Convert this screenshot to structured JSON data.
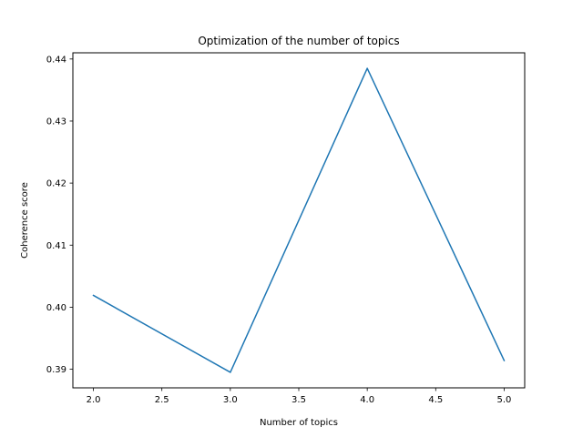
{
  "chart_data": {
    "type": "line",
    "title": "Optimization of the number of topics",
    "xlabel": "Number of topics",
    "ylabel": "Coherence score",
    "x": [
      2,
      3,
      4,
      5
    ],
    "series": [
      {
        "values": [
          0.4019,
          0.3895,
          0.4385,
          0.3914
        ]
      }
    ],
    "xlim": [
      1.85,
      5.15
    ],
    "ylim": [
      0.387,
      0.441
    ],
    "xticks": [
      2.0,
      2.5,
      3.0,
      3.5,
      4.0,
      4.5,
      5.0
    ],
    "xtick_labels": [
      "2.0",
      "2.5",
      "3.0",
      "3.5",
      "4.0",
      "4.5",
      "5.0"
    ],
    "yticks": [
      0.39,
      0.4,
      0.41,
      0.42,
      0.43,
      0.44
    ],
    "ytick_labels": [
      "0.39",
      "0.40",
      "0.41",
      "0.42",
      "0.43",
      "0.44"
    ],
    "grid": false,
    "line_color": "#1f77b4"
  }
}
